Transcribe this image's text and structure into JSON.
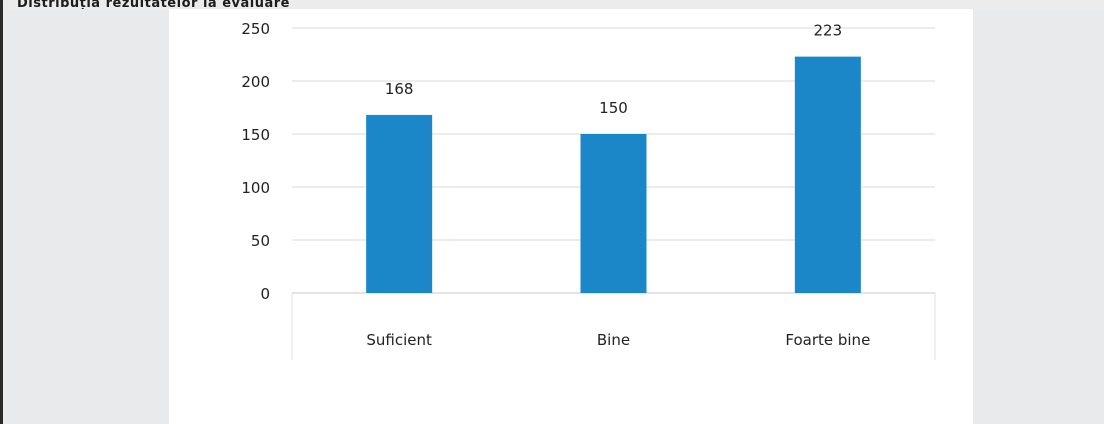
{
  "header": {
    "title_text": "Distribuția rezultatelor la evaluare"
  },
  "colors": {
    "bar": "#1b87c9",
    "grid": "#d8d8d8",
    "axis_text": "#222222",
    "background": "#ececec"
  },
  "chart_data": {
    "type": "bar",
    "title": "",
    "xlabel": "",
    "ylabel": "",
    "categories": [
      "Suficient",
      "Bine",
      "Foarte bine"
    ],
    "values": [
      168,
      150,
      223
    ],
    "data_labels": [
      "168",
      "150",
      "223"
    ],
    "yticks": [
      "0",
      "50",
      "100",
      "150",
      "200",
      "250"
    ],
    "ylim": [
      0,
      250
    ],
    "grid": true,
    "legend": "none"
  }
}
